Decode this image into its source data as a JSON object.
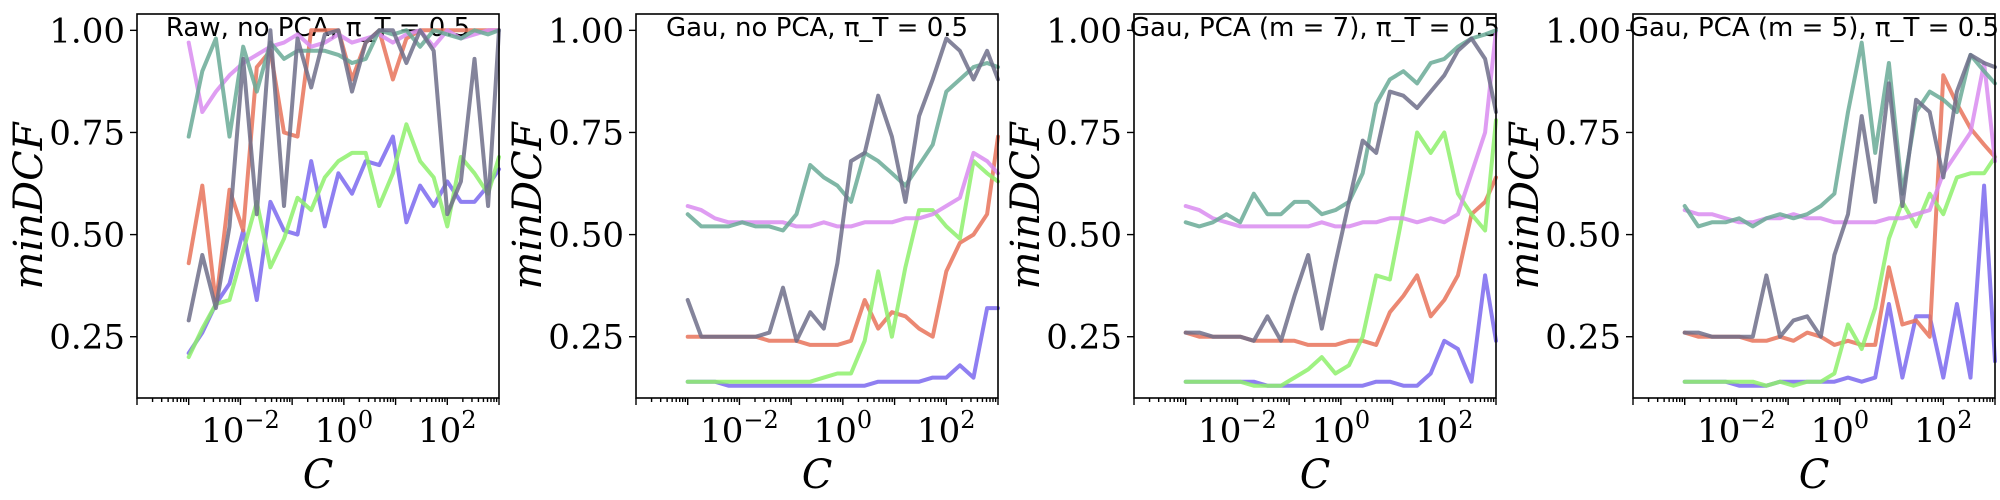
{
  "chart_data": [
    {
      "type": "line",
      "title": "Raw, no PCA, π_T = 0.5",
      "xlabel": "C",
      "ylabel": "minDCF",
      "xscale": "log",
      "xlim": [
        0.0001,
        1000
      ],
      "ylim": [
        0.1,
        1.04
      ],
      "x_tick_labels": [
        "10^-2",
        "10^0",
        "10^2"
      ],
      "y_tick_labels": [
        "0.25",
        "0.50",
        "0.75",
        "1.00"
      ],
      "legend": "none",
      "grid": false,
      "x": [
        0.001,
        0.00183,
        0.00336,
        0.00616,
        0.0113,
        0.0207,
        0.0379,
        0.0695,
        0.127,
        0.234,
        0.428,
        0.785,
        1.44,
        2.64,
        4.83,
        8.86,
        16.2,
        29.8,
        54.6,
        100,
        183,
        336,
        616,
        1000
      ],
      "series": [
        {
          "color": "#7b68ee",
          "values": [
            0.21,
            0.26,
            0.33,
            0.38,
            0.51,
            0.34,
            0.58,
            0.51,
            0.5,
            0.68,
            0.52,
            0.65,
            0.6,
            0.68,
            0.67,
            0.74,
            0.53,
            0.62,
            0.57,
            0.63,
            0.58,
            0.58,
            0.62,
            0.66
          ]
        },
        {
          "color": "#e8735a",
          "values": [
            0.43,
            0.62,
            0.33,
            0.61,
            0.51,
            0.91,
            0.95,
            0.75,
            0.74,
            1.0,
            1.0,
            1.0,
            0.88,
            0.97,
            1.0,
            0.88,
            0.98,
            1.0,
            1.0,
            1.0,
            1.0,
            1.0,
            1.0,
            1.0
          ]
        },
        {
          "color": "#8ef06c",
          "values": [
            0.2,
            0.27,
            0.33,
            0.34,
            0.46,
            0.58,
            0.42,
            0.49,
            0.59,
            0.56,
            0.64,
            0.68,
            0.7,
            0.7,
            0.57,
            0.65,
            0.77,
            0.68,
            0.64,
            0.52,
            0.69,
            0.65,
            0.6,
            0.69
          ]
        },
        {
          "color": "#d98cf0",
          "values": [
            0.97,
            0.8,
            0.85,
            0.89,
            0.92,
            0.94,
            0.96,
            0.97,
            0.99,
            0.96,
            0.97,
            0.99,
            0.97,
            0.98,
            0.99,
            0.97,
            0.99,
            1.0,
            0.96,
            1.0,
            0.98,
            0.99,
            1.0,
            1.0
          ]
        },
        {
          "color": "#6aaa96",
          "values": [
            0.74,
            0.9,
            0.98,
            0.74,
            0.96,
            0.85,
            0.97,
            0.93,
            0.95,
            0.95,
            0.95,
            0.94,
            0.92,
            0.93,
            1.0,
            0.99,
            1.0,
            0.96,
            1.0,
            0.99,
            0.98,
            1.0,
            0.99,
            1.0
          ]
        },
        {
          "color": "#6e6e8a",
          "values": [
            0.29,
            0.45,
            0.32,
            0.52,
            0.93,
            0.55,
            1.0,
            0.57,
            0.98,
            0.86,
            0.99,
            1.0,
            0.85,
            0.97,
            1.0,
            1.0,
            0.92,
            1.0,
            0.95,
            0.55,
            0.63,
            0.93,
            0.57,
            1.0
          ]
        }
      ]
    },
    {
      "type": "line",
      "title": "Gau, no PCA, π_T = 0.5",
      "xlabel": "C",
      "ylabel": "minDCF",
      "xscale": "log",
      "xlim": [
        0.0001,
        1000
      ],
      "ylim": [
        0.1,
        1.04
      ],
      "x_tick_labels": [
        "10^-2",
        "10^0",
        "10^2"
      ],
      "y_tick_labels": [
        "0.25",
        "0.50",
        "0.75",
        "1.00"
      ],
      "legend": "none",
      "grid": false,
      "x": [
        0.001,
        0.00183,
        0.00336,
        0.00616,
        0.0113,
        0.0207,
        0.0379,
        0.0695,
        0.127,
        0.234,
        0.428,
        0.785,
        1.44,
        2.64,
        4.83,
        8.86,
        16.2,
        29.8,
        54.6,
        100,
        183,
        336,
        616,
        1000
      ],
      "series": [
        {
          "color": "#7b68ee",
          "values": [
            0.14,
            0.14,
            0.14,
            0.13,
            0.13,
            0.13,
            0.13,
            0.13,
            0.13,
            0.13,
            0.13,
            0.13,
            0.13,
            0.13,
            0.14,
            0.14,
            0.14,
            0.14,
            0.15,
            0.15,
            0.18,
            0.15,
            0.32,
            0.32
          ]
        },
        {
          "color": "#e8735a",
          "values": [
            0.25,
            0.25,
            0.25,
            0.25,
            0.25,
            0.25,
            0.24,
            0.24,
            0.24,
            0.23,
            0.23,
            0.23,
            0.24,
            0.34,
            0.27,
            0.31,
            0.3,
            0.27,
            0.25,
            0.41,
            0.48,
            0.5,
            0.55,
            0.74
          ]
        },
        {
          "color": "#8ef06c",
          "values": [
            0.14,
            0.14,
            0.14,
            0.14,
            0.14,
            0.14,
            0.14,
            0.14,
            0.14,
            0.14,
            0.15,
            0.16,
            0.16,
            0.24,
            0.41,
            0.25,
            0.42,
            0.56,
            0.56,
            0.52,
            0.49,
            0.68,
            0.65,
            0.63
          ]
        },
        {
          "color": "#d98cf0",
          "values": [
            0.57,
            0.56,
            0.54,
            0.53,
            0.53,
            0.53,
            0.53,
            0.53,
            0.52,
            0.52,
            0.53,
            0.52,
            0.52,
            0.53,
            0.53,
            0.53,
            0.54,
            0.54,
            0.55,
            0.57,
            0.59,
            0.7,
            0.68,
            0.65
          ]
        },
        {
          "color": "#6aaa96",
          "values": [
            0.55,
            0.52,
            0.52,
            0.52,
            0.53,
            0.52,
            0.52,
            0.51,
            0.55,
            0.67,
            0.64,
            0.62,
            0.58,
            0.7,
            0.68,
            0.65,
            0.62,
            0.67,
            0.72,
            0.85,
            0.88,
            0.91,
            0.92,
            0.91
          ]
        },
        {
          "color": "#6e6e8a",
          "values": [
            0.34,
            0.25,
            0.25,
            0.25,
            0.25,
            0.25,
            0.26,
            0.37,
            0.24,
            0.31,
            0.27,
            0.43,
            0.68,
            0.7,
            0.84,
            0.74,
            0.58,
            0.79,
            0.88,
            0.98,
            0.95,
            0.88,
            0.95,
            0.88
          ]
        }
      ]
    },
    {
      "type": "line",
      "title": "Gau, PCA (m = 7), π_T = 0.5",
      "xlabel": "C",
      "ylabel": "minDCF",
      "xscale": "log",
      "xlim": [
        0.0001,
        1000
      ],
      "ylim": [
        0.1,
        1.04
      ],
      "x_tick_labels": [
        "10^-2",
        "10^0",
        "10^2"
      ],
      "y_tick_labels": [
        "0.25",
        "0.50",
        "0.75",
        "1.00"
      ],
      "legend": "none",
      "grid": false,
      "x": [
        0.001,
        0.00183,
        0.00336,
        0.00616,
        0.0113,
        0.0207,
        0.0379,
        0.0695,
        0.127,
        0.234,
        0.428,
        0.785,
        1.44,
        2.64,
        4.83,
        8.86,
        16.2,
        29.8,
        54.6,
        100,
        183,
        336,
        616,
        1000
      ],
      "series": [
        {
          "color": "#7b68ee",
          "values": [
            0.14,
            0.14,
            0.14,
            0.14,
            0.14,
            0.14,
            0.13,
            0.13,
            0.13,
            0.13,
            0.13,
            0.13,
            0.13,
            0.13,
            0.14,
            0.14,
            0.13,
            0.13,
            0.16,
            0.24,
            0.22,
            0.14,
            0.4,
            0.24
          ]
        },
        {
          "color": "#e8735a",
          "values": [
            0.26,
            0.25,
            0.25,
            0.25,
            0.25,
            0.24,
            0.24,
            0.24,
            0.24,
            0.23,
            0.23,
            0.23,
            0.24,
            0.24,
            0.23,
            0.31,
            0.35,
            0.4,
            0.3,
            0.34,
            0.4,
            0.55,
            0.58,
            0.64
          ]
        },
        {
          "color": "#8ef06c",
          "values": [
            0.14,
            0.14,
            0.14,
            0.14,
            0.14,
            0.13,
            0.13,
            0.13,
            0.15,
            0.17,
            0.2,
            0.16,
            0.18,
            0.25,
            0.4,
            0.39,
            0.56,
            0.75,
            0.7,
            0.75,
            0.6,
            0.55,
            0.51,
            0.78
          ]
        },
        {
          "color": "#d98cf0",
          "values": [
            0.57,
            0.56,
            0.54,
            0.53,
            0.52,
            0.52,
            0.52,
            0.52,
            0.52,
            0.52,
            0.53,
            0.52,
            0.52,
            0.53,
            0.53,
            0.54,
            0.54,
            0.53,
            0.54,
            0.53,
            0.55,
            0.65,
            0.75,
            1.0
          ]
        },
        {
          "color": "#6aaa96",
          "values": [
            0.53,
            0.52,
            0.53,
            0.55,
            0.53,
            0.6,
            0.55,
            0.55,
            0.58,
            0.58,
            0.55,
            0.56,
            0.58,
            0.65,
            0.82,
            0.88,
            0.9,
            0.87,
            0.92,
            0.93,
            0.96,
            0.98,
            0.99,
            1.0
          ]
        },
        {
          "color": "#6e6e8a",
          "values": [
            0.26,
            0.26,
            0.25,
            0.25,
            0.25,
            0.24,
            0.3,
            0.24,
            0.35,
            0.45,
            0.27,
            0.43,
            0.58,
            0.73,
            0.7,
            0.85,
            0.84,
            0.81,
            0.85,
            0.89,
            0.95,
            0.98,
            0.93,
            0.8
          ]
        }
      ]
    },
    {
      "type": "line",
      "title": "Gau, PCA (m = 5), π_T = 0.5",
      "xlabel": "C",
      "ylabel": "minDCF",
      "xscale": "log",
      "xlim": [
        0.0001,
        1000
      ],
      "ylim": [
        0.1,
        1.04
      ],
      "x_tick_labels": [
        "10^-2",
        "10^0",
        "10^2"
      ],
      "y_tick_labels": [
        "0.25",
        "0.50",
        "0.75",
        "1.00"
      ],
      "legend": "none",
      "grid": false,
      "x": [
        0.001,
        0.00183,
        0.00336,
        0.00616,
        0.0113,
        0.0207,
        0.0379,
        0.0695,
        0.127,
        0.234,
        0.428,
        0.785,
        1.44,
        2.64,
        4.83,
        8.86,
        16.2,
        29.8,
        54.6,
        100,
        183,
        336,
        616,
        1000
      ],
      "series": [
        {
          "color": "#7b68ee",
          "values": [
            0.14,
            0.14,
            0.14,
            0.14,
            0.13,
            0.13,
            0.13,
            0.14,
            0.14,
            0.14,
            0.14,
            0.14,
            0.15,
            0.14,
            0.15,
            0.33,
            0.15,
            0.3,
            0.3,
            0.15,
            0.33,
            0.15,
            0.62,
            0.19
          ]
        },
        {
          "color": "#e8735a",
          "values": [
            0.26,
            0.25,
            0.25,
            0.25,
            0.25,
            0.24,
            0.24,
            0.25,
            0.24,
            0.26,
            0.25,
            0.23,
            0.24,
            0.23,
            0.23,
            0.42,
            0.28,
            0.29,
            0.25,
            0.89,
            0.82,
            0.76,
            0.72,
            0.69
          ]
        },
        {
          "color": "#8ef06c",
          "values": [
            0.14,
            0.14,
            0.14,
            0.14,
            0.14,
            0.14,
            0.13,
            0.14,
            0.13,
            0.14,
            0.14,
            0.16,
            0.28,
            0.22,
            0.32,
            0.49,
            0.58,
            0.52,
            0.6,
            0.55,
            0.64,
            0.65,
            0.65,
            0.69
          ]
        },
        {
          "color": "#d98cf0",
          "values": [
            0.56,
            0.55,
            0.55,
            0.54,
            0.53,
            0.53,
            0.54,
            0.54,
            0.55,
            0.54,
            0.54,
            0.53,
            0.53,
            0.53,
            0.53,
            0.54,
            0.54,
            0.55,
            0.56,
            0.65,
            0.7,
            0.75,
            0.92,
            0.68
          ]
        },
        {
          "color": "#6aaa96",
          "values": [
            0.57,
            0.52,
            0.53,
            0.53,
            0.54,
            0.52,
            0.54,
            0.55,
            0.54,
            0.55,
            0.57,
            0.6,
            0.8,
            0.97,
            0.7,
            0.92,
            0.6,
            0.8,
            0.85,
            0.83,
            0.8,
            0.94,
            0.9,
            0.87
          ]
        },
        {
          "color": "#6e6e8a",
          "values": [
            0.26,
            0.26,
            0.25,
            0.25,
            0.25,
            0.25,
            0.4,
            0.25,
            0.29,
            0.3,
            0.25,
            0.45,
            0.55,
            0.79,
            0.58,
            0.87,
            0.57,
            0.83,
            0.8,
            0.64,
            0.85,
            0.94,
            0.92,
            0.91
          ]
        }
      ]
    }
  ]
}
